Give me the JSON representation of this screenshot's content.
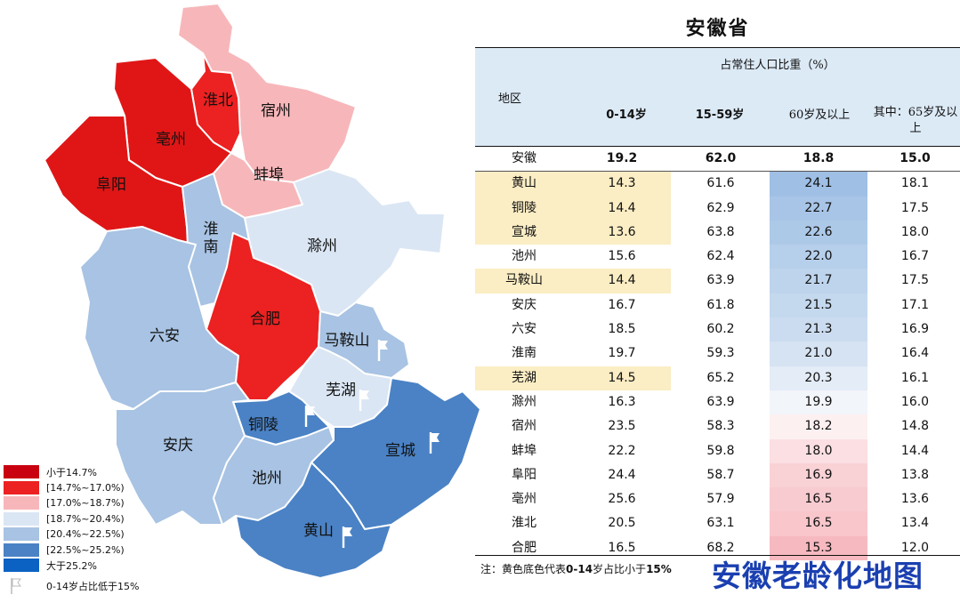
{
  "title": "安徽省",
  "brand_caption": "安徽老龄化地图",
  "note": {
    "text": "注：黄色底色代表",
    "bold": "0-14",
    "text2": "岁占比小于",
    "bold2": "15%"
  },
  "colors": {
    "lt14_7": "#d90f0f",
    "r14_7_17": "#ec2121",
    "r17_18_7": "#f7b7ba",
    "r18_7_20_4": "#dbe6f4",
    "r20_4_22_5": "#a8c3e3",
    "r22_5_25_2": "#4a82c5",
    "gt25_2": "#0b62c2",
    "header_bg": "#dceaf6",
    "highlight": "#fbedc4",
    "brand": "#1a3fb0"
  },
  "legend": {
    "items": [
      {
        "label": "小于14.7%",
        "color": "#c8000f"
      },
      {
        "label": "[14.7%~17.0%)",
        "color": "#ec2121"
      },
      {
        "label": "[17.0%~18.7%)",
        "color": "#f7b7ba"
      },
      {
        "label": "[18.7%~20.4%)",
        "color": "#dbe6f4"
      },
      {
        "label": "[20.4%~22.5%)",
        "color": "#a8c3e3"
      },
      {
        "label": "[22.5%~25.2%)",
        "color": "#4a82c5"
      },
      {
        "label": "大于25.2%",
        "color": "#0b62c2"
      }
    ],
    "flag_label": "0-14岁占比低于15%",
    "flag_icon": "flag-icon"
  },
  "map": {
    "regions": {
      "suzhou": "宿州",
      "huaibei": "淮北",
      "bozhou": "亳州",
      "fuyang": "阜阳",
      "bengbu": "蚌埠",
      "huainan_1": "淮",
      "huainan_2": "南",
      "chuzhou": "滁州",
      "liuan": "六安",
      "hefei": "合肥",
      "maanshan": "马鞍山",
      "wuhu": "芜湖",
      "tongling": "铜陵",
      "anqing": "安庆",
      "chizhou": "池州",
      "xuancheng": "宣城",
      "huangshan": "黄山"
    }
  },
  "table": {
    "header": {
      "region": "地区",
      "group": "占常住人口比重（%）",
      "c1": "0-14岁",
      "c2": "15-59岁",
      "c3": "60岁及以上",
      "c4": "其中：65岁及以上"
    },
    "rows": [
      {
        "name": "安徽",
        "v1": "19.2",
        "v2": "62.0",
        "v3": "18.8",
        "v4": "15.0",
        "total": true
      },
      {
        "name": "黄山",
        "v1": "14.3",
        "v2": "61.6",
        "v3": "24.1",
        "v4": "18.1",
        "hl": true,
        "c3": "#9fbfe5"
      },
      {
        "name": "铜陵",
        "v1": "14.4",
        "v2": "62.9",
        "v3": "22.7",
        "v4": "17.5",
        "hl": true,
        "c3": "#a8c5e7"
      },
      {
        "name": "宣城",
        "v1": "13.6",
        "v2": "63.8",
        "v3": "22.6",
        "v4": "18.0",
        "hl": true,
        "c3": "#adc9e8"
      },
      {
        "name": "池州",
        "v1": "15.6",
        "v2": "62.4",
        "v3": "22.0",
        "v4": "16.7",
        "c3": "#b6cfeb"
      },
      {
        "name": "马鞍山",
        "v1": "14.4",
        "v2": "63.9",
        "v3": "21.7",
        "v4": "17.5",
        "hl": true,
        "c3": "#bdd4ec"
      },
      {
        "name": "安庆",
        "v1": "16.7",
        "v2": "61.8",
        "v3": "21.5",
        "v4": "17.1",
        "c3": "#c4d8ee"
      },
      {
        "name": "六安",
        "v1": "18.5",
        "v2": "60.2",
        "v3": "21.3",
        "v4": "16.9",
        "c3": "#cbdcf0"
      },
      {
        "name": "淮南",
        "v1": "19.7",
        "v2": "59.3",
        "v3": "21.0",
        "v4": "16.4",
        "c3": "#d6e3f3"
      },
      {
        "name": "芜湖",
        "v1": "14.5",
        "v2": "65.2",
        "v3": "20.3",
        "v4": "16.1",
        "hl": true,
        "c3": "#e3ecf7"
      },
      {
        "name": "滁州",
        "v1": "16.3",
        "v2": "63.9",
        "v3": "19.9",
        "v4": "16.0",
        "c3": "#f2f5fa"
      },
      {
        "name": "宿州",
        "v1": "23.5",
        "v2": "58.3",
        "v3": "18.2",
        "v4": "14.8",
        "c3": "#fdf0f1"
      },
      {
        "name": "蚌埠",
        "v1": "22.2",
        "v2": "59.8",
        "v3": "18.0",
        "v4": "14.4",
        "c3": "#fbdfe2"
      },
      {
        "name": "阜阳",
        "v1": "24.4",
        "v2": "58.7",
        "v3": "16.9",
        "v4": "13.8",
        "c3": "#f9d2d6"
      },
      {
        "name": "亳州",
        "v1": "25.6",
        "v2": "57.9",
        "v3": "16.5",
        "v4": "13.6",
        "c3": "#f8cbd0"
      },
      {
        "name": "淮北",
        "v1": "20.5",
        "v2": "63.1",
        "v3": "16.5",
        "v4": "13.4",
        "c3": "#f8c6cb"
      },
      {
        "name": "合肥",
        "v1": "16.5",
        "v2": "68.2",
        "v3": "15.3",
        "v4": "12.0",
        "c3": "#f6b9bf"
      }
    ]
  }
}
